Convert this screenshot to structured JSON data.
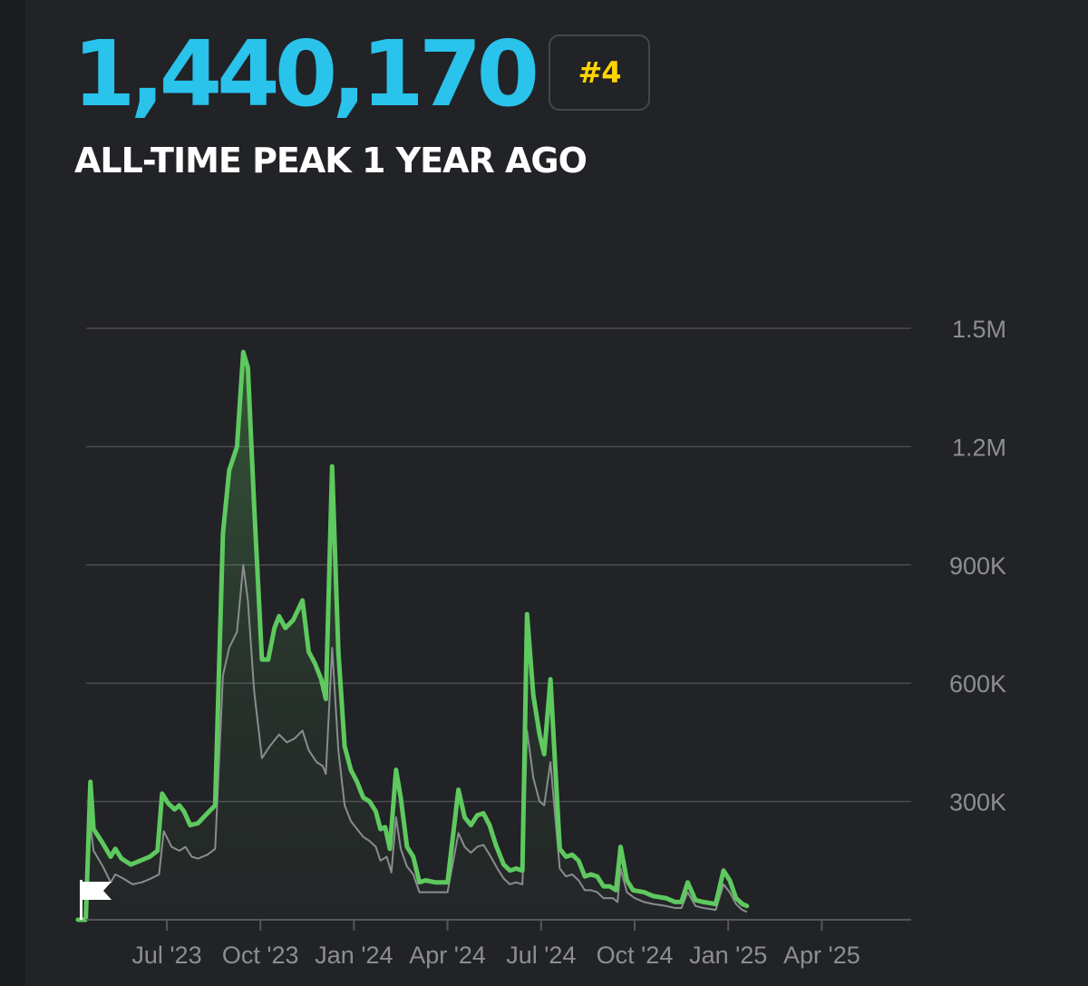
{
  "header": {
    "peak_value": "1,440,170",
    "rank_badge": "#4",
    "subtitle": "ALL-TIME PEAK 1 YEAR AGO"
  },
  "colors": {
    "background": "#222326",
    "headline": "#29c3ec",
    "rank": "#ffd500",
    "series_main": "#5ec95f",
    "series_secondary": "#8b8c8f",
    "grid": "#4a4b50",
    "tick_label": "#8d8e92"
  },
  "chart_data": {
    "type": "line",
    "title": "",
    "xlabel": "",
    "ylabel": "",
    "ylim": [
      0,
      1500000
    ],
    "y_ticks": [
      {
        "value": 300000,
        "label": "300K"
      },
      {
        "value": 600000,
        "label": "600K"
      },
      {
        "value": 900000,
        "label": "900K"
      },
      {
        "value": 1200000,
        "label": "1.2M"
      },
      {
        "value": 1500000,
        "label": "1.5M"
      }
    ],
    "x_ticks": [
      {
        "t": 1.0,
        "label": "Jul '23"
      },
      {
        "t": 4.0,
        "label": "Oct '23"
      },
      {
        "t": 7.0,
        "label": "Jan '24"
      },
      {
        "t": 10.0,
        "label": "Apr '24"
      },
      {
        "t": 13.0,
        "label": "Jul '24"
      },
      {
        "t": 16.0,
        "label": "Oct '24"
      },
      {
        "t": 19.0,
        "label": "Jan '25"
      },
      {
        "t": 22.0,
        "label": "Apr '25"
      }
    ],
    "grid": true,
    "legend": "none",
    "start_marker": "flag-icon",
    "x_note": "t = months from June 1, 2023",
    "series": [
      {
        "points": [
          [
            -1.85,
            0
          ],
          [
            -1.6,
            0
          ],
          [
            -1.45,
            350000
          ],
          [
            -1.35,
            230000
          ],
          [
            -1.1,
            200000
          ],
          [
            -0.8,
            160000
          ],
          [
            -0.65,
            180000
          ],
          [
            -0.45,
            155000
          ],
          [
            -0.15,
            140000
          ],
          [
            0.15,
            150000
          ],
          [
            0.45,
            160000
          ],
          [
            0.7,
            175000
          ],
          [
            0.85,
            320000
          ],
          [
            1.05,
            295000
          ],
          [
            1.25,
            280000
          ],
          [
            1.4,
            290000
          ],
          [
            1.55,
            275000
          ],
          [
            1.75,
            240000
          ],
          [
            2.0,
            245000
          ],
          [
            2.3,
            270000
          ],
          [
            2.55,
            290000
          ],
          [
            2.8,
            980000
          ],
          [
            3.0,
            1140000
          ],
          [
            3.25,
            1200000
          ],
          [
            3.45,
            1440000
          ],
          [
            3.6,
            1400000
          ],
          [
            3.8,
            1050000
          ],
          [
            4.05,
            660000
          ],
          [
            4.25,
            660000
          ],
          [
            4.45,
            740000
          ],
          [
            4.6,
            770000
          ],
          [
            4.8,
            740000
          ],
          [
            5.05,
            760000
          ],
          [
            5.35,
            810000
          ],
          [
            5.55,
            680000
          ],
          [
            5.75,
            650000
          ],
          [
            5.95,
            610000
          ],
          [
            6.1,
            560000
          ],
          [
            6.3,
            1150000
          ],
          [
            6.5,
            680000
          ],
          [
            6.7,
            440000
          ],
          [
            6.9,
            380000
          ],
          [
            7.1,
            350000
          ],
          [
            7.3,
            310000
          ],
          [
            7.5,
            300000
          ],
          [
            7.7,
            275000
          ],
          [
            7.85,
            230000
          ],
          [
            8.0,
            235000
          ],
          [
            8.15,
            180000
          ],
          [
            8.35,
            380000
          ],
          [
            8.5,
            310000
          ],
          [
            8.7,
            185000
          ],
          [
            8.9,
            160000
          ],
          [
            9.1,
            95000
          ],
          [
            9.3,
            100000
          ],
          [
            9.6,
            95000
          ],
          [
            10.0,
            95000
          ],
          [
            10.35,
            330000
          ],
          [
            10.55,
            260000
          ],
          [
            10.75,
            240000
          ],
          [
            10.95,
            265000
          ],
          [
            11.15,
            270000
          ],
          [
            11.35,
            240000
          ],
          [
            11.55,
            190000
          ],
          [
            11.8,
            140000
          ],
          [
            12.0,
            125000
          ],
          [
            12.2,
            130000
          ],
          [
            12.4,
            125000
          ],
          [
            12.55,
            775000
          ],
          [
            12.75,
            570000
          ],
          [
            12.95,
            470000
          ],
          [
            13.1,
            420000
          ],
          [
            13.3,
            610000
          ],
          [
            13.6,
            180000
          ],
          [
            13.8,
            160000
          ],
          [
            14.0,
            165000
          ],
          [
            14.2,
            150000
          ],
          [
            14.4,
            110000
          ],
          [
            14.6,
            115000
          ],
          [
            14.8,
            110000
          ],
          [
            15.0,
            85000
          ],
          [
            15.2,
            85000
          ],
          [
            15.4,
            75000
          ],
          [
            15.55,
            185000
          ],
          [
            15.75,
            100000
          ],
          [
            15.95,
            75000
          ],
          [
            16.3,
            70000
          ],
          [
            16.6,
            60000
          ],
          [
            17.0,
            55000
          ],
          [
            17.3,
            45000
          ],
          [
            17.5,
            45000
          ],
          [
            17.7,
            95000
          ],
          [
            17.95,
            50000
          ],
          [
            18.2,
            45000
          ],
          [
            18.6,
            40000
          ],
          [
            18.85,
            125000
          ],
          [
            19.05,
            100000
          ],
          [
            19.25,
            55000
          ],
          [
            19.45,
            40000
          ],
          [
            19.6,
            35000
          ]
        ]
      },
      {
        "points": [
          [
            -1.85,
            0
          ],
          [
            -1.6,
            0
          ],
          [
            -1.45,
            240000
          ],
          [
            -1.35,
            175000
          ],
          [
            -1.05,
            135000
          ],
          [
            -0.8,
            95000
          ],
          [
            -0.65,
            115000
          ],
          [
            -0.4,
            105000
          ],
          [
            -0.1,
            90000
          ],
          [
            0.2,
            95000
          ],
          [
            0.5,
            105000
          ],
          [
            0.75,
            115000
          ],
          [
            0.9,
            225000
          ],
          [
            1.15,
            185000
          ],
          [
            1.4,
            175000
          ],
          [
            1.6,
            185000
          ],
          [
            1.8,
            160000
          ],
          [
            2.0,
            155000
          ],
          [
            2.3,
            165000
          ],
          [
            2.55,
            180000
          ],
          [
            2.8,
            620000
          ],
          [
            3.0,
            690000
          ],
          [
            3.25,
            730000
          ],
          [
            3.45,
            900000
          ],
          [
            3.6,
            810000
          ],
          [
            3.8,
            580000
          ],
          [
            4.05,
            410000
          ],
          [
            4.3,
            440000
          ],
          [
            4.6,
            470000
          ],
          [
            4.85,
            450000
          ],
          [
            5.1,
            460000
          ],
          [
            5.35,
            480000
          ],
          [
            5.55,
            430000
          ],
          [
            5.8,
            400000
          ],
          [
            6.0,
            390000
          ],
          [
            6.1,
            370000
          ],
          [
            6.3,
            690000
          ],
          [
            6.5,
            430000
          ],
          [
            6.7,
            290000
          ],
          [
            6.9,
            250000
          ],
          [
            7.1,
            230000
          ],
          [
            7.3,
            210000
          ],
          [
            7.5,
            200000
          ],
          [
            7.7,
            185000
          ],
          [
            7.85,
            150000
          ],
          [
            8.05,
            160000
          ],
          [
            8.2,
            120000
          ],
          [
            8.35,
            260000
          ],
          [
            8.5,
            180000
          ],
          [
            8.7,
            135000
          ],
          [
            8.9,
            115000
          ],
          [
            9.1,
            70000
          ],
          [
            9.4,
            70000
          ],
          [
            10.0,
            70000
          ],
          [
            10.35,
            220000
          ],
          [
            10.55,
            185000
          ],
          [
            10.75,
            170000
          ],
          [
            10.95,
            185000
          ],
          [
            11.15,
            190000
          ],
          [
            11.35,
            165000
          ],
          [
            11.6,
            130000
          ],
          [
            11.8,
            105000
          ],
          [
            12.0,
            90000
          ],
          [
            12.2,
            95000
          ],
          [
            12.4,
            90000
          ],
          [
            12.55,
            480000
          ],
          [
            12.75,
            360000
          ],
          [
            12.95,
            300000
          ],
          [
            13.1,
            290000
          ],
          [
            13.3,
            400000
          ],
          [
            13.6,
            130000
          ],
          [
            13.8,
            110000
          ],
          [
            14.0,
            115000
          ],
          [
            14.2,
            100000
          ],
          [
            14.4,
            75000
          ],
          [
            14.6,
            75000
          ],
          [
            14.8,
            70000
          ],
          [
            15.0,
            55000
          ],
          [
            15.3,
            55000
          ],
          [
            15.45,
            45000
          ],
          [
            15.55,
            130000
          ],
          [
            15.75,
            70000
          ],
          [
            16.0,
            55000
          ],
          [
            16.3,
            45000
          ],
          [
            16.6,
            40000
          ],
          [
            17.0,
            35000
          ],
          [
            17.3,
            30000
          ],
          [
            17.5,
            30000
          ],
          [
            17.7,
            70000
          ],
          [
            17.95,
            35000
          ],
          [
            18.2,
            30000
          ],
          [
            18.6,
            25000
          ],
          [
            18.85,
            90000
          ],
          [
            19.05,
            70000
          ],
          [
            19.25,
            40000
          ],
          [
            19.45,
            25000
          ],
          [
            19.6,
            20000
          ]
        ]
      }
    ]
  }
}
